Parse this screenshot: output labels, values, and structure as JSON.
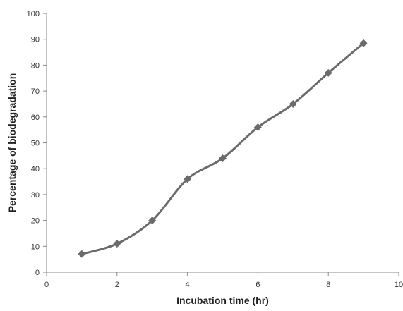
{
  "chart_data": {
    "type": "line",
    "title": "",
    "xlabel": "Incubation time (hr)",
    "ylabel": "Percentage of biodegradation",
    "xlim": [
      0,
      10
    ],
    "ylim": [
      0,
      100
    ],
    "xticks": [
      0,
      2,
      4,
      6,
      8,
      10
    ],
    "yticks": [
      0,
      10,
      20,
      30,
      40,
      50,
      60,
      70,
      80,
      90,
      100
    ],
    "grid": false,
    "legend": "none",
    "line_color": "#6b6b6b",
    "marker": "diamond",
    "series": [
      {
        "x": [
          1,
          2,
          3,
          4,
          5,
          6,
          7,
          8,
          9
        ],
        "values": [
          7,
          11,
          20,
          36,
          44,
          56,
          65,
          77,
          88.5
        ]
      }
    ]
  }
}
